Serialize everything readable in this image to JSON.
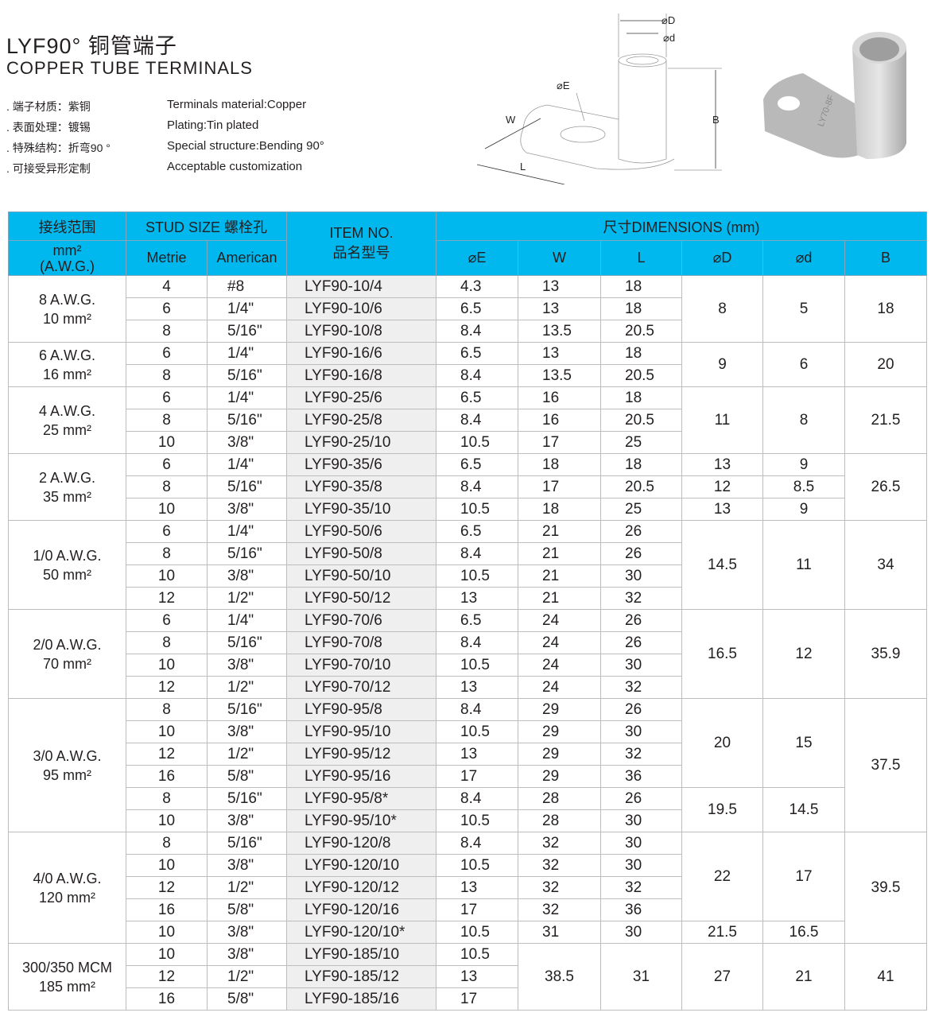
{
  "header": {
    "title": "LYF90° 铜管端子",
    "subtitle": "COPPER TUBE TERMINALS"
  },
  "specs": {
    "cn": [
      ". 端子材质：紫铜",
      ". 表面处理：镀锡",
      ". 特殊结构：折弯90 °",
      ". 可接受异形定制"
    ],
    "en": [
      "Terminals material:Copper",
      "Plating:Tin plated",
      "Special structure:Bending 90°",
      "Acceptable customization"
    ]
  },
  "drawing": {
    "labels": {
      "D": "⌀D",
      "d": "⌀d",
      "E": "⌀E",
      "W": "W",
      "L": "L",
      "B": "B"
    },
    "photo_marking": "LY70-8F"
  },
  "colors": {
    "header_bg": "#00b8ee",
    "item_col_bg": "#efefef",
    "group_divider": "#3a9fd8"
  },
  "table": {
    "headers": {
      "range": "接线范围",
      "stud": "STUD  SIZE  螺栓孔",
      "item": "ITEM NO.",
      "item_cn": "品名型号",
      "dims": "尺寸DIMENSIONS (mm)",
      "range_unit": "mm²",
      "range_awg": "(A.W.G.)",
      "metric": "Metrie",
      "american": "American",
      "E": "⌀E",
      "W": "W",
      "L": "L",
      "D": "⌀D",
      "d": "⌀d",
      "B": "B"
    },
    "groups": [
      {
        "awg": "8 A.W.G.",
        "mm": "10 mm²",
        "rows": [
          [
            "4",
            "#8",
            "LYF90-10/4",
            "4.3",
            "13",
            "18",
            "8",
            "5",
            "18"
          ],
          [
            "6",
            "1/4\"",
            "LYF90-10/6",
            "6.5",
            "13",
            "18",
            null,
            null,
            null
          ],
          [
            "8",
            "5/16\"",
            "LYF90-10/8",
            "8.4",
            "13.5",
            "20.5",
            null,
            null,
            null
          ]
        ]
      },
      {
        "awg": "6 A.W.G.",
        "mm": "16 mm²",
        "rows": [
          [
            "6",
            "1/4\"",
            "LYF90-16/6",
            "6.5",
            "13",
            "18",
            "9",
            "6",
            "20"
          ],
          [
            "8",
            "5/16\"",
            "LYF90-16/8",
            "8.4",
            "13.5",
            "20.5",
            null,
            null,
            null
          ]
        ]
      },
      {
        "awg": "4 A.W.G.",
        "mm": "25 mm²",
        "rows": [
          [
            "6",
            "1/4\"",
            "LYF90-25/6",
            "6.5",
            "16",
            "18",
            "11",
            "8",
            "21.5"
          ],
          [
            "8",
            "5/16\"",
            "LYF90-25/8",
            "8.4",
            "16",
            "20.5",
            null,
            null,
            null
          ],
          [
            "10",
            "3/8\"",
            "LYF90-25/10",
            "10.5",
            "17",
            "25",
            null,
            null,
            null
          ]
        ]
      },
      {
        "awg": "2 A.W.G.",
        "mm": "35 mm²",
        "rows": [
          [
            "6",
            "1/4\"",
            "LYF90-35/6",
            "6.5",
            "18",
            "18",
            "13",
            "9",
            "26.5"
          ],
          [
            "8",
            "5/16\"",
            "LYF90-35/8",
            "8.4",
            "17",
            "20.5",
            "12",
            "8.5",
            null
          ],
          [
            "10",
            "3/8\"",
            "LYF90-35/10",
            "10.5",
            "18",
            "25",
            "13",
            "9",
            null
          ]
        ]
      },
      {
        "awg": "1/0 A.W.G.",
        "mm": "50 mm²",
        "rows": [
          [
            "6",
            "1/4\"",
            "LYF90-50/6",
            "6.5",
            "21",
            "26",
            "14.5",
            "11",
            "34"
          ],
          [
            "8",
            "5/16\"",
            "LYF90-50/8",
            "8.4",
            "21",
            "26",
            null,
            null,
            null
          ],
          [
            "10",
            "3/8\"",
            "LYF90-50/10",
            "10.5",
            "21",
            "30",
            null,
            null,
            null
          ],
          [
            "12",
            "1/2\"",
            "LYF90-50/12",
            "13",
            "21",
            "32",
            null,
            null,
            null
          ]
        ]
      },
      {
        "awg": "2/0 A.W.G.",
        "mm": "70 mm²",
        "rows": [
          [
            "6",
            "1/4\"",
            "LYF90-70/6",
            "6.5",
            "24",
            "26",
            "16.5",
            "12",
            "35.9"
          ],
          [
            "8",
            "5/16\"",
            "LYF90-70/8",
            "8.4",
            "24",
            "26",
            null,
            null,
            null
          ],
          [
            "10",
            "3/8\"",
            "LYF90-70/10",
            "10.5",
            "24",
            "30",
            null,
            null,
            null
          ],
          [
            "12",
            "1/2\"",
            "LYF90-70/12",
            "13",
            "24",
            "32",
            null,
            null,
            null
          ]
        ]
      },
      {
        "awg": "3/0 A.W.G.",
        "mm": "95 mm²",
        "rows": [
          [
            "8",
            "5/16\"",
            "LYF90-95/8",
            "8.4",
            "29",
            "26",
            "20",
            "15",
            "37.5"
          ],
          [
            "10",
            "3/8\"",
            "LYF90-95/10",
            "10.5",
            "29",
            "30",
            null,
            null,
            null
          ],
          [
            "12",
            "1/2\"",
            "LYF90-95/12",
            "13",
            "29",
            "32",
            null,
            null,
            null
          ],
          [
            "16",
            "5/8\"",
            "LYF90-95/16",
            "17",
            "29",
            "36",
            null,
            null,
            null
          ],
          [
            "8",
            "5/16\"",
            "LYF90-95/8*",
            "8.4",
            "28",
            "26",
            "19.5",
            "14.5",
            null
          ],
          [
            "10",
            "3/8\"",
            "LYF90-95/10*",
            "10.5",
            "28",
            "30",
            null,
            null,
            null
          ]
        ]
      },
      {
        "awg": "4/0 A.W.G.",
        "mm": "120 mm²",
        "rows": [
          [
            "8",
            "5/16\"",
            "LYF90-120/8",
            "8.4",
            "32",
            "30",
            "22",
            "17",
            "39.5"
          ],
          [
            "10",
            "3/8\"",
            "LYF90-120/10",
            "10.5",
            "32",
            "30",
            null,
            null,
            null
          ],
          [
            "12",
            "1/2\"",
            "LYF90-120/12",
            "13",
            "32",
            "32",
            null,
            null,
            null
          ],
          [
            "16",
            "5/8\"",
            "LYF90-120/16",
            "17",
            "32",
            "36",
            null,
            null,
            null
          ],
          [
            "10",
            "3/8\"",
            "LYF90-120/10*",
            "10.5",
            "31",
            "30",
            "21.5",
            "16.5",
            null
          ]
        ]
      },
      {
        "awg": "300/350 MCM",
        "mm": "185 mm²",
        "rows": [
          [
            "10",
            "3/8\"",
            "LYF90-185/10",
            "10.5",
            "38.5",
            "31",
            "27",
            "21",
            "41"
          ],
          [
            "12",
            "1/2\"",
            "LYF90-185/12",
            "13",
            null,
            null,
            null,
            null,
            null
          ],
          [
            "16",
            "5/8\"",
            "LYF90-185/16",
            "17",
            null,
            null,
            null,
            null,
            null
          ]
        ]
      }
    ]
  }
}
